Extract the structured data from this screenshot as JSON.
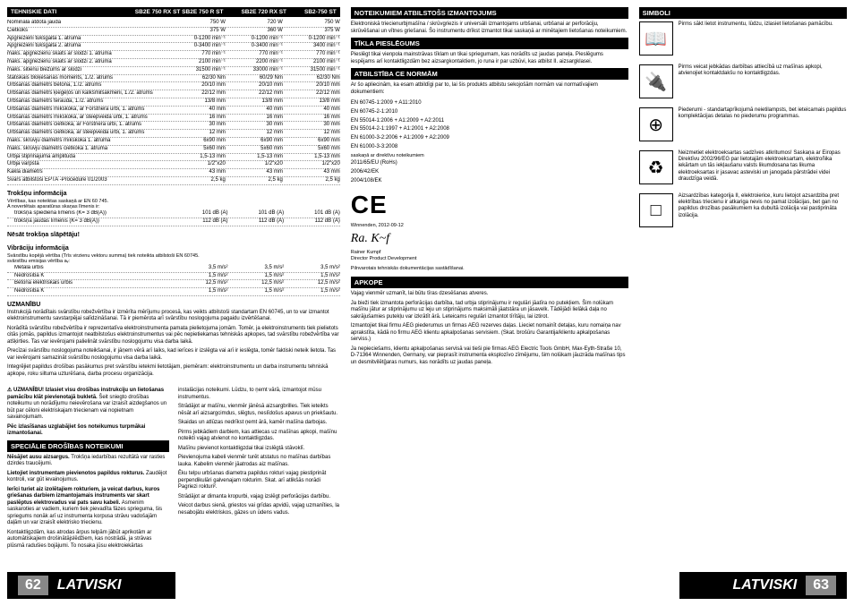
{
  "headers": {
    "tehniskie": "TEHNISKIE DATI",
    "models": [
      "SB2E 750 RX ST SB2E 750 R ST",
      "SB2E 720 RX ST",
      "SB2-750 ST"
    ],
    "noteikumiem": "NOTEIKUMIEM ATBILSTOŠS IZMANTOJUMS",
    "tikla": "TĪKLA PIESLĒGUMS",
    "atbilstiba": "ATBILSTĪBA CE NORMĀM",
    "apkope": "APKOPE",
    "simboli": "SIMBOLI",
    "speciale": "SPECIĀLIE DROŠĪBAS NOTEIKUMI"
  },
  "specs": [
    {
      "l": "Nominālā atdotā jauda",
      "v": [
        "750 W",
        "720 W",
        "750 W"
      ]
    },
    {
      "l": "Cietkoks",
      "v": [
        "375 W",
        "360 W",
        "375 W"
      ]
    },
    {
      "l": "Apgriezieni tukšgaitā 1. ātrumā",
      "v": [
        "0-1200 min⁻¹",
        "0-1200 min⁻¹",
        "0-1200 min⁻¹"
      ]
    },
    {
      "l": "Apgriezieni tukšgaitā 2. ātrumā",
      "v": [
        "0-3400 min⁻¹",
        "0-3400 min⁻¹",
        "3400 min⁻¹"
      ]
    },
    {
      "l": "maks. apgriezienu skaits ar slodzi 1. ātrumā",
      "v": [
        "770 min⁻¹",
        "770 min⁻¹",
        "770 min⁻¹"
      ]
    },
    {
      "l": "maks. apgriezienu skaits ar slodzi 2. ātrumā",
      "v": [
        "2100 min⁻¹",
        "2200 min⁻¹",
        "2100 min⁻¹"
      ]
    },
    {
      "l": "maks. sitienu biežums ar slodzi",
      "v": [
        "31500 min⁻¹",
        "33000 min⁻¹",
        "31500 min⁻¹"
      ]
    },
    {
      "l": "statiskais bloķēšanas moments, 1./2. ātrums",
      "v": [
        "62/30 Nm",
        "60/29 Nm",
        "62/30 Nm"
      ]
    },
    {
      "l": "Urbšanas diametrs betonā, 1./2. ātrums",
      "v": [
        "20/10 mm",
        "20/10 mm",
        "20/10 mm"
      ]
    },
    {
      "l": "Urbšanas diametrs ķieģeļos un kalkšmilšakmeni, 1./2. ātrums",
      "v": [
        "22/12 mm",
        "22/12 mm",
        "22/12 mm"
      ]
    },
    {
      "l": "Urbšanas diametrs tēraudā, 1./2. ātrums",
      "v": [
        "13/8 mm",
        "13/8 mm",
        "13/8 mm"
      ]
    },
    {
      "l": "Urbšanas diametrs mīkskokā, ar Forstnera urbi, 1. ātrums",
      "v": [
        "40 mm",
        "40 mm",
        "40 mm"
      ]
    },
    {
      "l": "Urbšanas diametrs mīkskokā, ar steepveida urbi, 1. ātrums",
      "v": [
        "16 mm",
        "16 mm",
        "16 mm"
      ]
    },
    {
      "l": "Urbšanas diametrs cietkokā, ar Forstnera urbi, 1. ātrums",
      "v": [
        "30 mm",
        "30 mm",
        "30 mm"
      ]
    },
    {
      "l": "Urbšanas diametrs cietkokā, ar steepveida urbi, 1. ātrums",
      "v": [
        "12 mm",
        "12 mm",
        "12 mm"
      ]
    },
    {
      "l": "maks. skrūvju diametrs mīkskokā 1. ātrumā",
      "v": [
        "6x90 mm",
        "6x90 mm",
        "6x90 mm"
      ]
    },
    {
      "l": "maks. skrūvju diametrs cietkokā 1. ātrumā",
      "v": [
        "5x60 mm",
        "5x60 mm",
        "5x60 mm"
      ]
    },
    {
      "l": "Urbja stiprinājuma amplituda",
      "v": [
        "1,5-13 mm",
        "1,5-13 mm",
        "1,5-13 mm"
      ]
    },
    {
      "l": "Urbja vārpsta",
      "v": [
        "1/2\"x20",
        "1/2\"x20",
        "1/2\"x20"
      ]
    },
    {
      "l": "Kakla diametrs",
      "v": [
        "43 mm",
        "43 mm",
        "43 mm"
      ]
    },
    {
      "l": "Svars atbilstoši EPTA -Procedure 01/2003",
      "v": [
        "2,5 kg",
        "2,5 kg",
        "2,5 kg"
      ]
    }
  ],
  "troksnu": {
    "title": "Trokšņu informācija",
    "sub": "Vērtības, kas noteiktas saskaņā ar EN 60 745.",
    "sub2": "A novertētais aparatūras skaņas līmenis ir:",
    "rows": [
      {
        "l": "trokšņa spiediena līmenis (K= 3 dB(A))",
        "v": [
          "101 dB (A)",
          "101 dB (A)",
          "101 dB (A)"
        ]
      },
      {
        "l": "trokšņa jaudas līmenis (K= 3 dB(A))",
        "v": [
          "112 dB (A)",
          "112 dB (A)",
          "112 dB (A)"
        ]
      }
    ],
    "bold": "Nēsāt trokšņa slāpētāju!"
  },
  "vibraciju": {
    "title": "Vibrāciju informācija",
    "sub": "Svārstību kopējā vērtība (Trīs virzienu vektoru summa) tiek noteikta atbilstoši EN 60745.",
    "sub2": "svārstību emisijas vērtība aᵥ:",
    "rows": [
      {
        "l": "Metāla urbis",
        "v": [
          "3,5 m/s²",
          "3,5 m/s²",
          "3,5 m/s²"
        ]
      },
      {
        "l": "Nedrošība K",
        "v": [
          "1,5 m/s²",
          "1,5 m/s²",
          "1,5 m/s²"
        ]
      },
      {
        "l": "Betona elektriskais urbis",
        "v": [
          "12,5 m/s²",
          "12,5 m/s²",
          "12,5 m/s²"
        ]
      },
      {
        "l": "Nedrošība K",
        "v": [
          "1,5 m/s²",
          "1,5 m/s²",
          "1,5 m/s²"
        ]
      }
    ]
  },
  "uzmanibu": {
    "title": "UZMANĪBU",
    "p1": "Instrukcijā norādītais svārstību robežvērtība ir izmērīta mērījumu procesā, kas veikts atbilstoši standartam EN 60745, un to var izmantot elektroinstrumentu savstarpējai salīdzināšanai. Tā ir piemērota arī svārstību noslogojuma pagaidu izvērtēšanai.",
    "p2": "Norādītā svārstību robežvērtība ir reprezentatīva elektroinstrumenta pamata pielietojuma jomām. Tomēr, ja elektroinstruments tiek pielietots citās jomās, papildus izmantojot neatbilstošus elektroinstrumentus vai pēc nepietiekamas tehniskās apkopes, tad svārstību robežvērtība var atšķirties. Tas var ievērojami palielināt svārstību noslogojumu visa darba laikā.",
    "p3": "Precīzai svārstību noslogojuma noteikšanai, ir jāņem vērā arī laiks, kad ierīces ir izslēgta vai arī ir ieslēgta, tomēr faktiski neteik lietota. Tas var ievērojami samazināt svārstību noslogojumu visa darba laikā.",
    "p4": "Integrējiet papildus drošības pasākumus pret svārstību ietekmi lietotājam, piemēram: elektroinstrumentu un darba instrumentu tehniskā apkope, roku siltuma uzturēšana, darba procesu organizācija."
  },
  "warn_box": "⚠ UZMANĪBU! Izlasiet visu drošības instrukciju un lietošanas pamācību klāt pievienotajā bukletā.",
  "warn_rest": " Šeit sniegto drošības noteikumu un norādījumu neievērošana var izraisīt aizdegšanos un būt par cēloni elektriskajam triecienam vai nopietnam savainojumam.",
  "warn_bold2": "Pēc izlasīšanas uzglabājiet šos noteikumus turpmākai izmantošanai.",
  "speciales": [
    {
      "b": "Nēsājiet ausu aizsargus.",
      "t": " Trokšņa iedarbības rezultātā var rasties dzirdes traucējumi."
    },
    {
      "b": "Lietojiet instrumentam pievienotos papildus rokturus.",
      "t": " Zaudējot kontroli, var gūt ievainojumus."
    },
    {
      "b": "Ierīci turiet aiz izolētajiem rokturiem, ja veicat darbus, kuros griešanas darbiem izmantojamais instruments var skart paslēptus elektrovadus vai pats savu kabeli.",
      "t": " Asmenim saskaroties ar vadiem, kuriem tiek pievadīta fāzes sprieguma, šis spriegums nonāk arī uz instrumenta korpusa strāvu vadošajām daļām un var izraisīt elektrisko triecienu."
    },
    {
      "b": "",
      "t": "Kontaktligzdām, kas atrodas ārpus telpām jābūt aprikotām ar automātiskajiem drošinātājslēdžiem, kas nostrādā, ja strāvas plūsmā radušies bojājumi. To nosaka jūsu elektroiekārtas"
    }
  ],
  "col2_text": [
    "instalācijas noteikumi. Lūdzu, to ņemt vārā, izmantojot mūsu instrumentus.",
    "Strādājot ar mašīnu, vienmēr jānēsā aizsargbrilles. Tiek ieteikts nēsāt arī aizsargcimdus, slēgtus, neslīdošus apavus un priekšautu.",
    "Skaidas un atlūzas nedrīkst ņemt ārā, kamēr mašīna darbojas.",
    "Pirms jebkādiem darbiem, kas attiecas uz mašīnas apkopi, mašīnu noteikti vajag atvienot no kontaktligzdas.",
    "Mašīnu pievienot kontaktligzdai tikai izslēgtā stāvoklī.",
    "Pievienojuma kabeli vienmēr turēt atstatus no mašīnas darbības lauka. Kabelim vienmēr jāatrodas aiz mašīnas.",
    "Ēku telpu urbšanas diametra papildus rokturi vajag piestiprināt perpendikulāri galvenajam rokturim. Skat. arī atlikšās norādi Pagriezi rokturi².",
    "Strādājot ar dimanta kropurbi, vajag izslēgt perforācijas darbību.",
    "Veicot darbus sienā, griestos vai grīdas apvidū, vajag uzmanīties, la nesabojātu elektriskos, gāzes un ūdens vadus."
  ],
  "noteikumiem_text": "Elektroniskā triecienurbjmašīna / skrūvgriezis ir universāli izmantojams urbšanai, urbšanai ar perforāciju, skrūvēšanai un vītnes griešanai.\nŠo instrumentu drīkst izmantot tikai saskaņā ar minētajiem lietošanas noteikumiem.",
  "tikla_text": "Pieslēgt tikai vienpola mainstrāvas tīklam un tikai spriegumam, kas norādīts uz jaudas paneļa. Pieslēgums iespējams arī kontaktligzdām bez aizsargkontaktiem, jo runa ir par uzbūvi, kas atbilst II. aizsargklasei.",
  "norms": {
    "intro": "Ar šo apliecinām, ka esam atbildīgi par to, lai šis produkts atbilstu sekojošām normām vai normatīvajiem dokumentiem:",
    "list": [
      "EN 60745-1:2009 + A11:2010",
      "EN 60745-2-1:2010",
      "EN 55014-1:2006 + A1:2009 + A2:2011",
      "EN 55014-2-1:1997 + A1:2001 + A2:2008",
      "EN 61000-3-2:2006 + A1:2009 + A2:2009",
      "EN 61000-3-3:2008"
    ],
    "sub": "saskaņā ar direktīvu noteikumiem",
    "list2": [
      "2011/65/EU (RoHs)",
      "2006/42/EK",
      "2004/108/EK"
    ],
    "date": "Winnenden, 2012-09-12",
    "name": "Rainer Kumpf",
    "role": "Director Product Development",
    "auth": "Pilnvarotais tehniskās dokumentācijas sastādīšanai."
  },
  "apkope_text": [
    "Vajag vienmēr uzmanīt, lai būtu tīras dzesēšanas atveres.",
    "Ja bieži tiek izmantota perforācijas darbība, tad urbja stiprinājumu ir regulāri jāatīra no putekļiem. Šim nolūkam mašīnu jātur ar stiprinājumu uz leju un stiprinājums maksimāli jāatstāra un jāsavelk. Tādējādi lielākā daļa no sakrājušamies putekļu var izkrātīt ārā. Leteicams regulāri izmantot tīrītāju, lai iztirot.",
    "Izmantojiet tikai firmu AEG piederumus un firmas AEG rezerves daļas. Lieciet nomainīt detaļas, kuru nomaiņa nav aprakstīta, kādā no firmu AEG klientu apkalpošanas servisiem. (Skat. brošūru Garantija/klientu apkalpošanas serviss.)",
    "Ja nepieciešams, klientu apkalpošanas servisā vai tieši pie firmas AEG Electric Tools GmbH, Max-Eyth-Straße 10, D-71364 Winnenden, Germany, var pieprasīt instrumenta eksplozīvo zīmējumu, šim nolūkam jāuzrāda mašīnas tips un desmitvilētḡaras numurs, kas norādīts uz jaudas paneļa."
  ],
  "simboli": [
    {
      "icon": "📖",
      "text": "Pirms sākt lietot instrumentu, lūdzu, izlasiet lietošanas pamācību."
    },
    {
      "icon": "🔌",
      "text": "Pirms veicat jebkādas darbības attiecībā uz mašīnas apkopi, atvienojiet kontaktdakšu no kontaktligzdas."
    },
    {
      "icon": "⊕",
      "text": "Piederumi - standartaprīkojumā neietilampsts, bet ieteicamais papildus komplektācijas detalas no piederumu programmas."
    },
    {
      "icon": "♻",
      "text": "Neizmetiet elektroeksartas sadzīves atkritumos! Saskaņa ar Eiropas Direktīvu 2002/96/EG par lietotajām elektroeksartam, elektroñika iekārtam un tās iekļaušanu valsts likumdosana tas likuma elektroeksartas ir jasavac asteviski un janogada pārstrādei videi draudzīga veidā."
    },
    {
      "icon": "□",
      "text": "Aizsardzības kategorija II, elektroierice, kuru lietojot azsardziba pret elektrības triecienu ir atkariga nevis no pamat izolācijas, bet gan no papildus drozības pasākumiem ka dubultā izolācija vai pastiprināta izolācija."
    }
  ],
  "footer": {
    "left_num": "62",
    "left": "LATVISKI",
    "right": "LATVISKI",
    "right_num": "63"
  }
}
